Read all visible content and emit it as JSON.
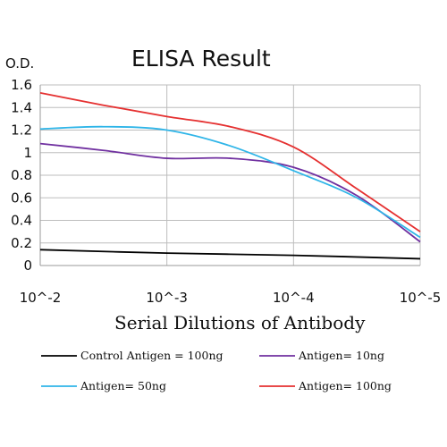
{
  "chart_data": {
    "type": "line",
    "title": "ELISA Result",
    "ylabel": "O.D.",
    "xlabel": "Serial Dilutions of Antibody",
    "categories": [
      "10^-2",
      "10^-3",
      "10^-4",
      "10^-5"
    ],
    "x_log10_dilution": [
      -2,
      -3,
      -4,
      -5
    ],
    "ylim": [
      0,
      1.6
    ],
    "yticks": [
      "0",
      "0.2",
      "0.4",
      "0.6",
      "0.8",
      "1",
      "1.2",
      "1.4",
      "1.6"
    ],
    "grid": true,
    "legend_position": "bottom",
    "series": [
      {
        "name": "Control Antigen = 100ng",
        "color": "#000000",
        "points": [
          [
            -2,
            0.14
          ],
          [
            -3,
            0.11
          ],
          [
            -4,
            0.09
          ],
          [
            -5,
            0.06
          ]
        ]
      },
      {
        "name": "Antigen= 10ng",
        "color": "#7030a0",
        "points": [
          [
            -2,
            1.08
          ],
          [
            -2.5,
            1.02
          ],
          [
            -3,
            0.95
          ],
          [
            -3.5,
            0.95
          ],
          [
            -4,
            0.87
          ],
          [
            -4.5,
            0.62
          ],
          [
            -5,
            0.21
          ]
        ]
      },
      {
        "name": "Antigen= 50ng",
        "color": "#2fb5e8",
        "points": [
          [
            -2,
            1.21
          ],
          [
            -2.5,
            1.23
          ],
          [
            -3,
            1.2
          ],
          [
            -3.5,
            1.06
          ],
          [
            -4,
            0.84
          ],
          [
            -4.5,
            0.6
          ],
          [
            -5,
            0.25
          ]
        ]
      },
      {
        "name": "Antigen= 100ng",
        "color": "#e53030",
        "points": [
          [
            -2,
            1.53
          ],
          [
            -2.5,
            1.42
          ],
          [
            -3,
            1.32
          ],
          [
            -3.5,
            1.23
          ],
          [
            -4,
            1.05
          ],
          [
            -4.5,
            0.68
          ],
          [
            -5,
            0.3
          ]
        ]
      }
    ]
  }
}
